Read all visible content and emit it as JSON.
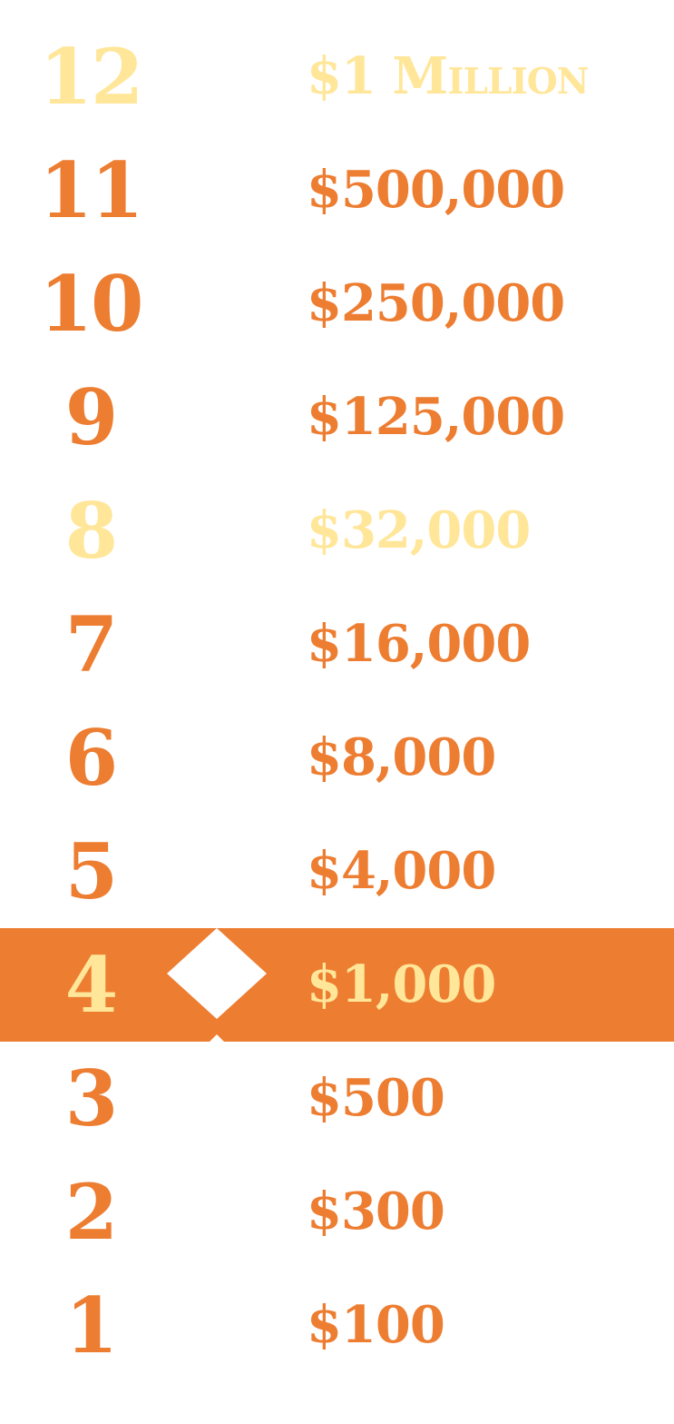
{
  "colors": {
    "accent": "#ed7d31",
    "safe_haven": "#ffe699",
    "background": "#ffffff",
    "marker": "#ffffff"
  },
  "ladder": {
    "current_level": "4",
    "rungs": [
      {
        "level": "12",
        "prize": "$1 Million",
        "safe": true
      },
      {
        "level": "11",
        "prize": "$500,000"
      },
      {
        "level": "10",
        "prize": "$250,000"
      },
      {
        "level": "9",
        "prize": "$125,000"
      },
      {
        "level": "8",
        "prize": "$32,000",
        "safe": true
      },
      {
        "level": "7",
        "prize": "$16,000"
      },
      {
        "level": "6",
        "prize": "$8,000"
      },
      {
        "level": "5",
        "prize": "$4,000"
      },
      {
        "level": "4",
        "prize": "$1,000",
        "current": true
      },
      {
        "level": "3",
        "prize": "$500"
      },
      {
        "level": "2",
        "prize": "$300"
      },
      {
        "level": "1",
        "prize": "$100"
      }
    ]
  },
  "marker": {
    "icon": "diamond-icon"
  }
}
